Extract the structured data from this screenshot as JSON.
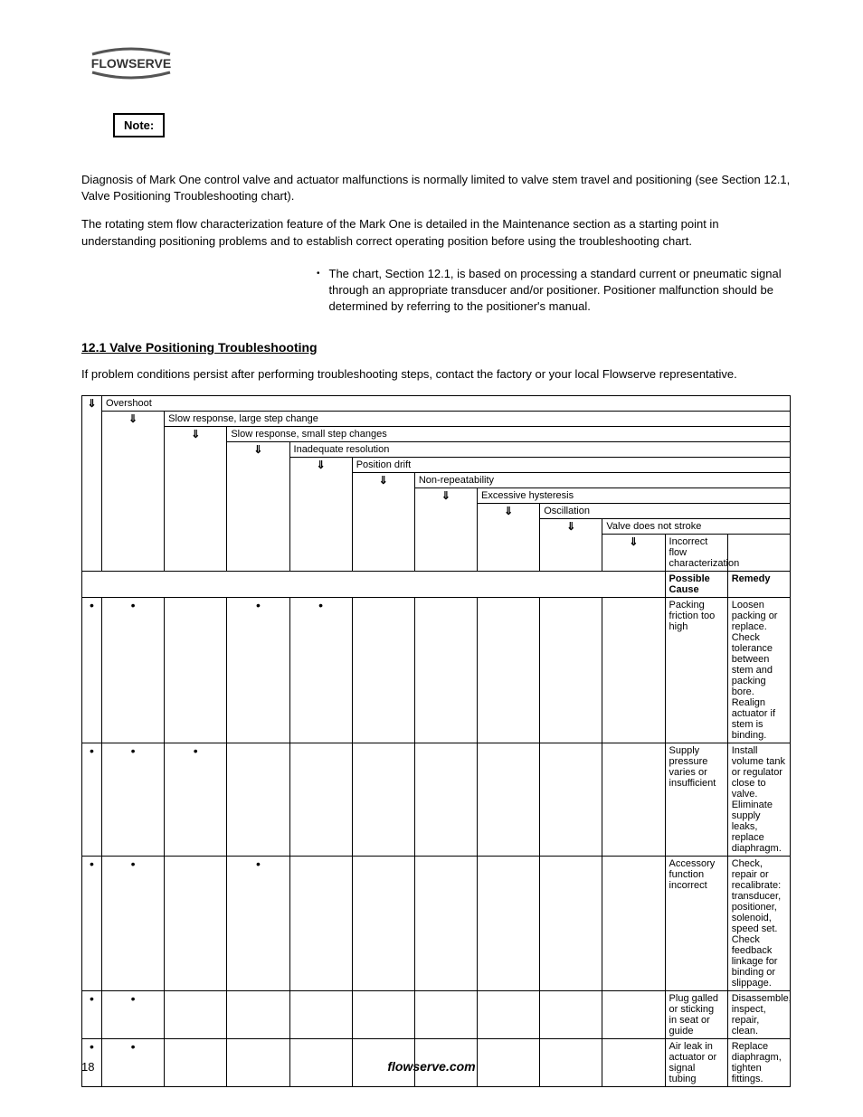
{
  "logo_text": "FLOWSERVE",
  "note_label": "Note:",
  "intro_para1": "Diagnosis of Mark One control valve and actuator malfunctions is normally limited to valve stem travel and positioning (see Section 12.1, Valve Positioning Troubleshooting chart).",
  "intro_para2": "The rotating stem flow characterization feature of the Mark One is detailed in the Maintenance section as a starting point in understanding positioning problems and to establish correct operating position before using the troubleshooting chart.",
  "bullet_text": "The chart, Section 12.1, is based on processing a standard current or pneumatic signal through an appropriate transducer and/or positioner. Positioner malfunction should be determined by referring to the positioner's manual.",
  "section_title": "12.1 Valve Positioning Troubleshooting",
  "para_after_title": "If problem conditions persist after performing troubleshooting steps, contact the factory or your local Flowserve representative.",
  "symptoms": [
    "Overshoot",
    "Slow response, large step change",
    "Slow response, small step changes",
    "Inadequate resolution",
    "Position drift",
    "Non-repeatability",
    "Excessive hysteresis",
    "Oscillation",
    "Valve does not stroke",
    "Incorrect flow characterization"
  ],
  "header_cause": "Possible Cause",
  "header_remedy": "Remedy",
  "rows": [
    {
      "marks": [
        true,
        true,
        false,
        true,
        true,
        false,
        false,
        false,
        false,
        false
      ],
      "cause": "Packing friction too high",
      "remedy": "Loosen packing or replace. Check tolerance between stem and packing bore. Realign actuator if stem is binding."
    },
    {
      "marks": [
        true,
        true,
        true,
        false,
        false,
        false,
        false,
        false,
        false,
        false
      ],
      "cause": "Supply pressure varies or insufficient",
      "remedy": "Install volume tank or regulator close to valve. Eliminate supply leaks, replace diaphragm."
    },
    {
      "marks": [
        true,
        true,
        false,
        true,
        false,
        false,
        false,
        false,
        false,
        false
      ],
      "cause": "Accessory function incorrect",
      "remedy": "Check, repair or recalibrate: transducer, positioner, solenoid, speed set. Check feedback linkage for binding or slippage."
    },
    {
      "marks": [
        true,
        true,
        false,
        false,
        false,
        false,
        false,
        false,
        false,
        false
      ],
      "cause": "Plug galled or sticking in seat or guide",
      "remedy": "Disassemble, inspect, repair, clean."
    },
    {
      "marks": [
        true,
        true,
        false,
        false,
        false,
        false,
        false,
        false,
        false,
        false
      ],
      "cause": "Air leak in actuator or signal tubing",
      "remedy": "Replace diaphragm, tighten fittings."
    }
  ],
  "page_number": "18",
  "footer_text": "flowserve.com"
}
